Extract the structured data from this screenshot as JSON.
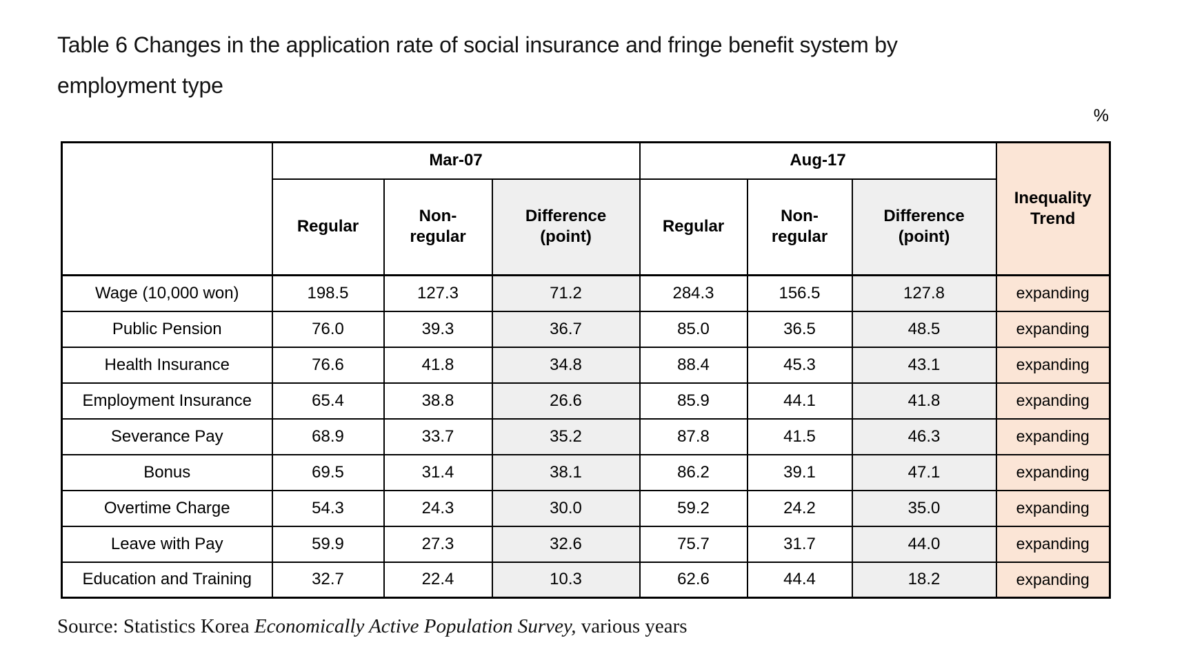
{
  "page": {
    "title": "Table 6   Changes in the application rate of social insurance and fringe benefit system by\nemployment type",
    "unit_label": "%"
  },
  "table": {
    "column_groups": [
      {
        "label": "Mar-07"
      },
      {
        "label": "Aug-17"
      }
    ],
    "sub_headers": [
      "Regular",
      "Non-\nregular",
      "Difference\n(point)"
    ],
    "inequality_header": "Inequality\nTrend",
    "rows": [
      {
        "label": "Wage (10,000 won)",
        "values": [
          "198.5",
          "127.3",
          "71.2",
          "284.3",
          "156.5",
          "127.8"
        ],
        "trend": "expanding"
      },
      {
        "label": "Public Pension",
        "values": [
          "76.0",
          "39.3",
          "36.7",
          "85.0",
          "36.5",
          "48.5"
        ],
        "trend": "expanding"
      },
      {
        "label": "Health Insurance",
        "values": [
          "76.6",
          "41.8",
          "34.8",
          "88.4",
          "45.3",
          "43.1"
        ],
        "trend": "expanding"
      },
      {
        "label": "Employment Insurance",
        "values": [
          "65.4",
          "38.8",
          "26.6",
          "85.9",
          "44.1",
          "41.8"
        ],
        "trend": "expanding"
      },
      {
        "label": "Severance Pay",
        "values": [
          "68.9",
          "33.7",
          "35.2",
          "87.8",
          "41.5",
          "46.3"
        ],
        "trend": "expanding"
      },
      {
        "label": "Bonus",
        "values": [
          "69.5",
          "31.4",
          "38.1",
          "86.2",
          "39.1",
          "47.1"
        ],
        "trend": "expanding"
      },
      {
        "label": "Overtime Charge",
        "values": [
          "54.3",
          "24.3",
          "30.0",
          "59.2",
          "24.2",
          "35.0"
        ],
        "trend": "expanding"
      },
      {
        "label": "Leave with Pay",
        "values": [
          "59.9",
          "27.3",
          "32.6",
          "75.7",
          "31.7",
          "44.0"
        ],
        "trend": "expanding"
      },
      {
        "label": "Education and Training",
        "values": [
          "32.7",
          "22.4",
          "10.3",
          "62.6",
          "44.4",
          "18.2"
        ],
        "trend": "expanding"
      }
    ]
  },
  "source": {
    "prefix": "Source: Statistics Korea ",
    "italic": "Economically Active Population Survey,",
    "suffix": " various years"
  },
  "colors": {
    "difference_column_bg": "#EFEFEF",
    "inequality_column_bg": "#FBE5D6",
    "border": "#000000"
  }
}
